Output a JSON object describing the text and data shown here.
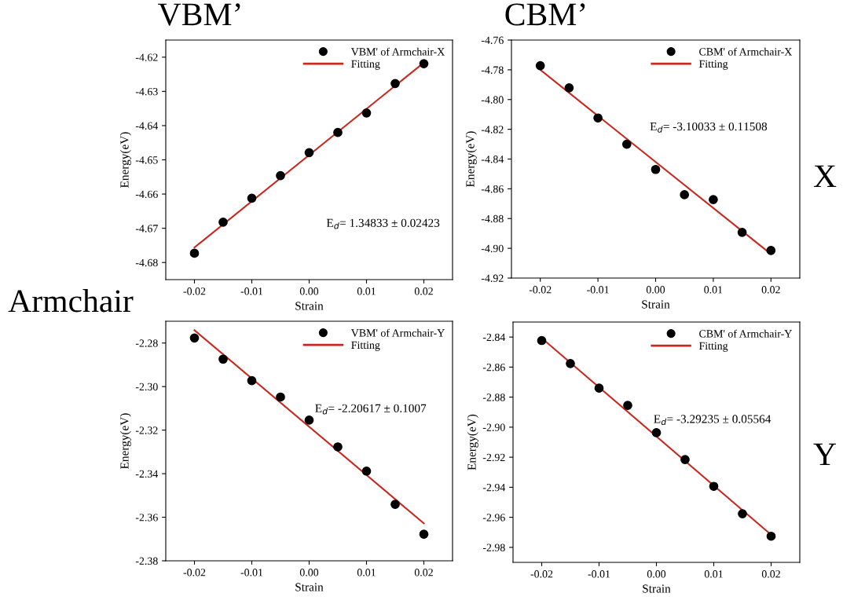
{
  "chart_data": [
    {
      "type": "scatter",
      "xlabel": "Strain",
      "ylabel": "Energy(eV)",
      "xlim": [
        -0.025,
        0.025
      ],
      "xticks": [
        {
          "value": -0.02,
          "label": "-0.02"
        },
        {
          "value": -0.01,
          "label": "-0.01"
        },
        {
          "value": 0,
          "label": "0.00"
        },
        {
          "value": 0.01,
          "label": "0.01"
        },
        {
          "value": 0.02,
          "label": "0.02"
        }
      ],
      "ylim": [
        -4.685,
        -4.615
      ],
      "yticks": [
        {
          "value": -4.68,
          "label": "-4.68"
        },
        {
          "value": -4.67,
          "label": "-4.67"
        },
        {
          "value": -4.66,
          "label": "-4.66"
        },
        {
          "value": -4.65,
          "label": "-4.65"
        },
        {
          "value": -4.64,
          "label": "-4.64"
        },
        {
          "value": -4.63,
          "label": "-4.63"
        },
        {
          "value": -4.62,
          "label": "-4.62"
        }
      ],
      "legend": "top right",
      "grid": false,
      "annotations": [
        "E$_{d}$= 1.34833 ± 0.02423"
      ],
      "series": [
        {
          "name": "VBM' of Armchair-X",
          "marker": "circle",
          "color": "#000000",
          "x": [
            -0.02,
            -0.015,
            -0.01,
            -0.005,
            0,
            0.005,
            0.01,
            0.015,
            0.02
          ],
          "values": [
            -4.6773,
            -4.6682,
            -4.6612,
            -4.6546,
            -4.6479,
            -4.642,
            -4.6363,
            -4.6277,
            -4.6219
          ]
        },
        {
          "name": "Fitting",
          "type": "line",
          "color": "#c8281e",
          "x": [
            -0.02,
            0.02
          ],
          "values": [
            -4.6756,
            -4.6216
          ]
        }
      ]
    },
    {
      "type": "scatter",
      "xlabel": "Strain",
      "ylabel": "Energy(eV)",
      "xlim": [
        -0.025,
        0.025
      ],
      "xticks": [
        {
          "value": -0.02,
          "label": "-0.02"
        },
        {
          "value": -0.01,
          "label": "-0.01"
        },
        {
          "value": 0,
          "label": "0.00"
        },
        {
          "value": 0.01,
          "label": "0.01"
        },
        {
          "value": 0.02,
          "label": "0.02"
        }
      ],
      "ylim": [
        -4.92,
        -4.76
      ],
      "yticks": [
        {
          "value": -4.92,
          "label": "-4.92"
        },
        {
          "value": -4.9,
          "label": "-4.90"
        },
        {
          "value": -4.88,
          "label": "-4.88"
        },
        {
          "value": -4.86,
          "label": "-4.86"
        },
        {
          "value": -4.84,
          "label": "-4.84"
        },
        {
          "value": -4.82,
          "label": "-4.82"
        },
        {
          "value": -4.8,
          "label": "-4.80"
        },
        {
          "value": -4.78,
          "label": "-4.78"
        },
        {
          "value": -4.76,
          "label": "-4.76"
        }
      ],
      "legend": "top right",
      "grid": false,
      "annotations": [
        "E$_{d}$= -3.10033 ± 0.11508"
      ],
      "series": [
        {
          "name": "CBM' of Armchair-X",
          "marker": "circle",
          "color": "#000000",
          "x": [
            -0.02,
            -0.015,
            -0.01,
            -0.005,
            0,
            0.005,
            0.01,
            0.015,
            0.02
          ],
          "values": [
            -4.7772,
            -4.7921,
            -4.8124,
            -4.83,
            -4.847,
            -4.864,
            -4.8673,
            -4.8893,
            -4.9015
          ]
        },
        {
          "name": "Fitting",
          "type": "line",
          "color": "#c8281e",
          "x": [
            -0.02,
            0.02
          ],
          "values": [
            -4.78,
            -4.9039
          ]
        }
      ]
    },
    {
      "type": "scatter",
      "xlabel": "Strain",
      "ylabel": "Energy(eV)",
      "xlim": [
        -0.025,
        0.025
      ],
      "xticks": [
        {
          "value": -0.02,
          "label": "-0.02"
        },
        {
          "value": -0.01,
          "label": "-0.01"
        },
        {
          "value": 0,
          "label": "0.00"
        },
        {
          "value": 0.01,
          "label": "0.01"
        },
        {
          "value": 0.02,
          "label": "0.02"
        }
      ],
      "ylim": [
        -2.38,
        -2.27
      ],
      "yticks": [
        {
          "value": -2.38,
          "label": "-2.38"
        },
        {
          "value": -2.36,
          "label": "-2.36"
        },
        {
          "value": -2.34,
          "label": "-2.34"
        },
        {
          "value": -2.32,
          "label": "-2.32"
        },
        {
          "value": -2.3,
          "label": "-2.30"
        },
        {
          "value": -2.28,
          "label": "-2.28"
        }
      ],
      "legend": "top right",
      "grid": false,
      "annotations": [
        "E$_{d}$= -2.20617 ± 0.1007"
      ],
      "series": [
        {
          "name": "VBM' of Armchair-Y",
          "marker": "circle",
          "color": "#000000",
          "x": [
            -0.02,
            -0.015,
            -0.01,
            -0.005,
            0,
            0.005,
            0.01,
            0.015,
            0.02
          ],
          "values": [
            -2.2777,
            -2.2874,
            -2.2973,
            -2.3048,
            -2.3154,
            -2.3277,
            -2.3388,
            -2.3541,
            -2.3678
          ]
        },
        {
          "name": "Fitting",
          "type": "line",
          "color": "#c8281e",
          "x": [
            -0.02,
            0.02
          ],
          "values": [
            -2.2741,
            -2.3628
          ]
        }
      ]
    },
    {
      "type": "scatter",
      "xlabel": "Strain",
      "ylabel": "Energy(eV)",
      "xlim": [
        -0.025,
        0.025
      ],
      "xticks": [
        {
          "value": -0.02,
          "label": "-0.02"
        },
        {
          "value": -0.01,
          "label": "-0.01"
        },
        {
          "value": 0,
          "label": "0.00"
        },
        {
          "value": 0.01,
          "label": "0.01"
        },
        {
          "value": 0.02,
          "label": "0.02"
        }
      ],
      "ylim": [
        -2.99,
        -2.83
      ],
      "yticks": [
        {
          "value": -2.98,
          "label": "-2.98"
        },
        {
          "value": -2.96,
          "label": "-2.96"
        },
        {
          "value": -2.94,
          "label": "-2.94"
        },
        {
          "value": -2.92,
          "label": "-2.92"
        },
        {
          "value": -2.9,
          "label": "-2.90"
        },
        {
          "value": -2.88,
          "label": "-2.88"
        },
        {
          "value": -2.86,
          "label": "-2.86"
        },
        {
          "value": -2.84,
          "label": "-2.84"
        }
      ],
      "legend": "top right",
      "grid": false,
      "annotations": [
        "E$_{d}$= -3.29235 ± 0.05564"
      ],
      "series": [
        {
          "name": "CBM' of Armchair-Y",
          "marker": "circle",
          "color": "#000000",
          "x": [
            -0.02,
            -0.015,
            -0.01,
            -0.005,
            0,
            0.005,
            0.01,
            0.015,
            0.02
          ],
          "values": [
            -2.8423,
            -2.8576,
            -2.874,
            -2.8855,
            -2.9037,
            -2.9216,
            -2.9394,
            -2.9576,
            -2.9726
          ]
        },
        {
          "name": "Fitting",
          "type": "line",
          "color": "#c8281e",
          "x": [
            -0.02,
            0.02
          ],
          "values": [
            -2.8407,
            -2.9716
          ]
        }
      ]
    },
    {
      "type": "other",
      "annotations": [
        "VBM’",
        "CBM’",
        "X",
        "Y",
        "Armchair"
      ]
    }
  ]
}
